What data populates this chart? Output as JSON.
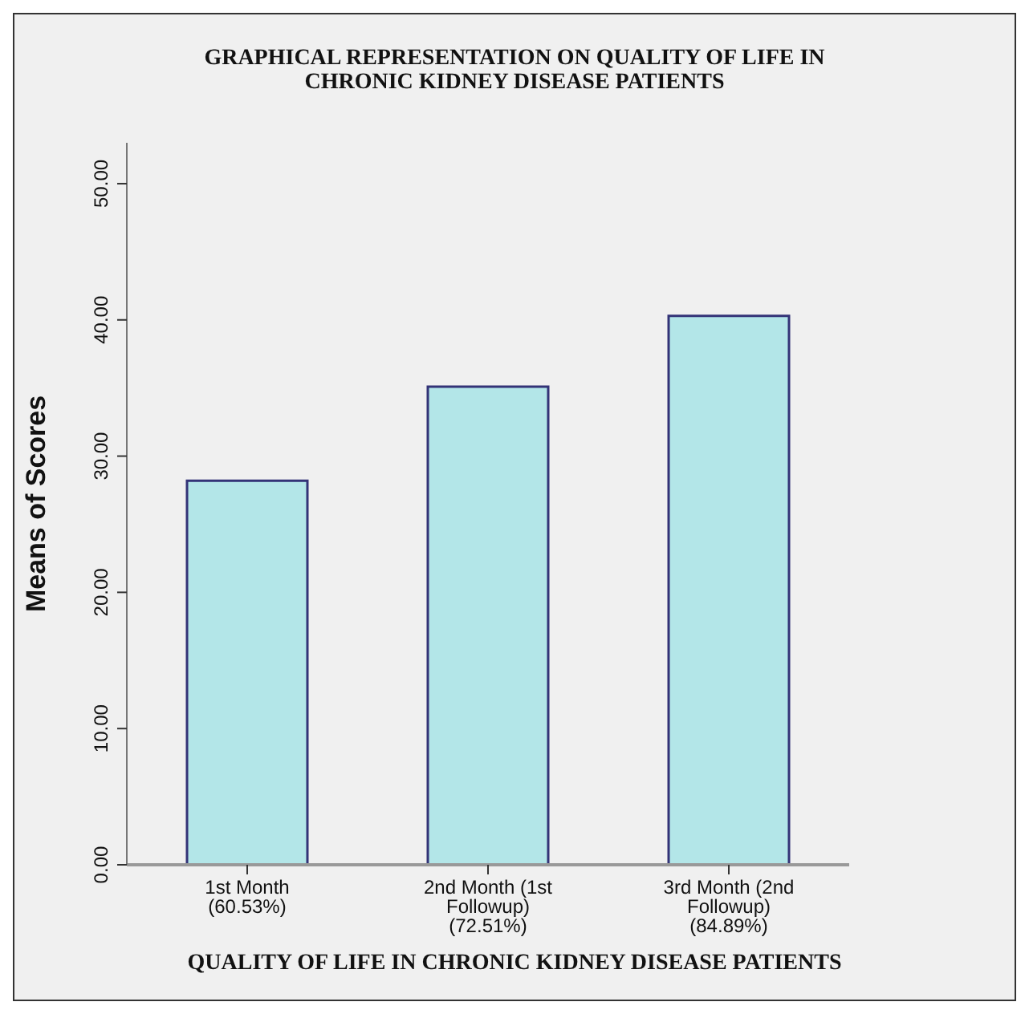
{
  "chart_data": {
    "type": "bar",
    "title": "GRAPHICAL REPRESENTATION ON QUALITY OF LIFE IN CHRONIC KIDNEY DISEASE PATIENTS",
    "xlabel": "QUALITY OF LIFE IN CHRONIC KIDNEY DISEASE PATIENTS",
    "ylabel": "Means of Scores",
    "categories": [
      "1st Month (60.53%)",
      "2nd Month (1st Followup) (72.51%)",
      "3rd Month (2nd Followup) (84.89%)"
    ],
    "values": [
      28.2,
      35.1,
      40.3
    ],
    "color": "#b3e6e8",
    "ylim": [
      0,
      53
    ],
    "yticks": [
      {
        "value": 0,
        "label": "0.00"
      },
      {
        "value": 10,
        "label": "10.00"
      },
      {
        "value": 20,
        "label": "20.00"
      },
      {
        "value": 30,
        "label": "30.00"
      },
      {
        "value": 40,
        "label": "40.00"
      },
      {
        "value": 50,
        "label": "50.00"
      }
    ],
    "grid": false,
    "legend": false
  }
}
